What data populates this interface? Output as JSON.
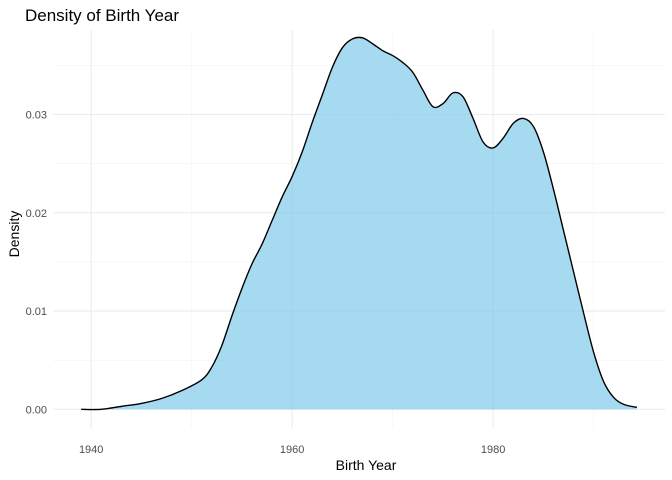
{
  "chart_data": {
    "type": "area",
    "title": "Density of Birth Year",
    "xlabel": "Birth Year",
    "ylabel": "Density",
    "xlim": [
      1936.2,
      1997.1
    ],
    "ylim": [
      -0.0019,
      0.0386
    ],
    "x_ticks": [
      1940,
      1960,
      1980
    ],
    "x_tick_labels": [
      "1940",
      "1960",
      "1980"
    ],
    "y_ticks": [
      0.0,
      0.01,
      0.02,
      0.03
    ],
    "y_tick_labels": [
      "0.00",
      "0.01",
      "0.02",
      "0.03"
    ],
    "grid": true,
    "legend": "none",
    "fill_color": "#87ceeb",
    "fill_opacity": 0.75,
    "line_color": "#000000",
    "series": [
      {
        "x": [
          1939,
          1941,
          1943,
          1945,
          1947,
          1949,
          1951,
          1952,
          1953,
          1954,
          1955,
          1956,
          1957,
          1958,
          1959,
          1960,
          1961,
          1962,
          1963,
          1964,
          1965,
          1966,
          1967,
          1968,
          1969,
          1970,
          1971,
          1972,
          1973,
          1974,
          1975,
          1976,
          1977,
          1978,
          1979,
          1980,
          1981,
          1982,
          1983,
          1984,
          1985,
          1986,
          1987,
          1988,
          1989,
          1990,
          1991,
          1992,
          1993,
          1994.3
        ],
        "y": [
          0.0,
          0.0,
          0.0003,
          0.0006,
          0.0011,
          0.0019,
          0.003,
          0.0043,
          0.0065,
          0.0095,
          0.0123,
          0.0148,
          0.0168,
          0.0192,
          0.0216,
          0.0237,
          0.0262,
          0.0292,
          0.032,
          0.0348,
          0.0368,
          0.0377,
          0.0378,
          0.0372,
          0.0365,
          0.036,
          0.0353,
          0.0343,
          0.0325,
          0.0308,
          0.0311,
          0.0322,
          0.0318,
          0.0296,
          0.0272,
          0.0266,
          0.0276,
          0.0291,
          0.0296,
          0.0288,
          0.0262,
          0.0224,
          0.0182,
          0.014,
          0.0098,
          0.0058,
          0.0028,
          0.0012,
          0.0005,
          0.0002
        ]
      }
    ]
  }
}
